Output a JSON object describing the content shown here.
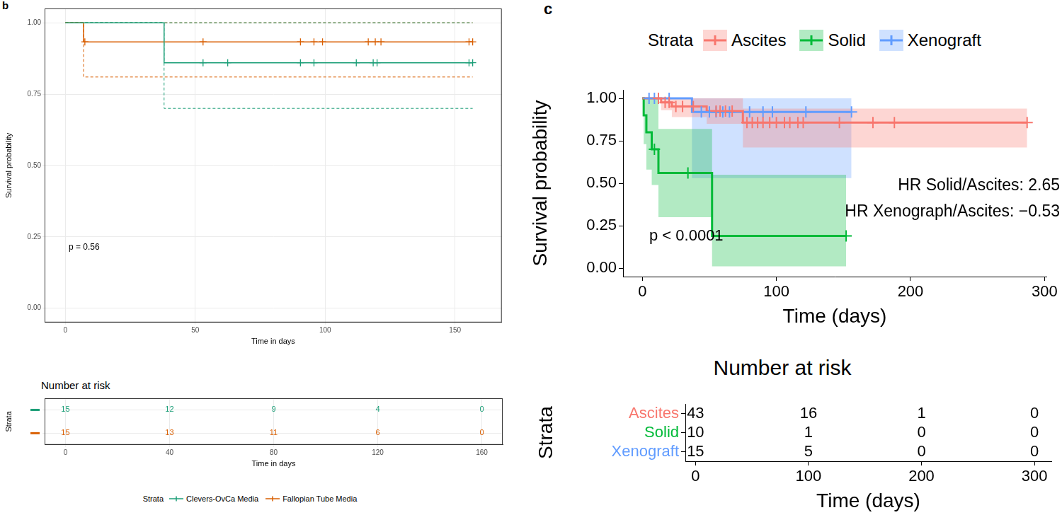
{
  "chart_data": [
    {
      "panel": "b",
      "type": "step",
      "x_label": "Time in days",
      "y_label": "Survival probability",
      "xlim": [
        -8,
        168
      ],
      "xticks": [
        0,
        50,
        100,
        150
      ],
      "ylim": [
        -0.05,
        1.05
      ],
      "yticks": [
        {
          "value": 0,
          "label": "0.00"
        },
        0.25,
        {
          "value": 0.5,
          "label": "0.50"
        },
        0.75,
        {
          "value": 1,
          "label": "1.00"
        }
      ],
      "grid": true,
      "legend": "bottom",
      "legend_title": "Strata",
      "ci": {
        "type": "line",
        "line_style": "dashed"
      },
      "annotations": [
        "p = 0.56"
      ],
      "series": [
        {
          "name": "Clevers-OvCa Media",
          "color": "#1B9E77",
          "marker": "cross",
          "x": [
            0,
            38,
            156.8
          ],
          "values": [
            1,
            0.86,
            0.86
          ],
          "lower": [
            1,
            0.7,
            0.7
          ],
          "upper": [
            1,
            1,
            1
          ],
          "censored": [
            53,
            62.5,
            90.5,
            95.7,
            112,
            118.5,
            120,
            155.4,
            156.8
          ]
        },
        {
          "name": "Fallopian Tube Media",
          "color": "#D95F02",
          "marker": "cross",
          "x": [
            0,
            7,
            156.8
          ],
          "values": [
            1,
            0.933,
            0.933
          ],
          "lower": [
            1,
            0.81,
            0.81
          ],
          "upper": [
            1,
            1,
            1
          ],
          "censored": [
            7.5,
            53,
            90.5,
            95.7,
            99,
            116.6,
            119.3,
            121.5,
            155.4,
            156.8
          ]
        }
      ],
      "risk_table": {
        "title": "Number at risk",
        "x_label": "Time in days",
        "y_label": "Strata",
        "xlim": [
          -8,
          168
        ],
        "xticks": [
          0,
          40,
          80,
          120,
          160
        ],
        "counts": [
          [
            15,
            12,
            9,
            4,
            0
          ],
          [
            15,
            13,
            11,
            6,
            0
          ]
        ],
        "grid": true,
        "tick_labels": "x"
      }
    },
    {
      "panel": "c",
      "type": "step",
      "x_label": "Time (days)",
      "y_label": "Survival probability",
      "xlim": [
        -14.4,
        301.4
      ],
      "xticks": [
        0,
        100,
        200,
        300
      ],
      "ylim": [
        -0.05,
        1.05
      ],
      "yticks": [
        {
          "value": 0,
          "label": "0.00"
        },
        0.25,
        {
          "value": 0.5,
          "label": "0.50"
        },
        0.75,
        {
          "value": 1,
          "label": "1.00"
        }
      ],
      "grid": false,
      "legend": "top",
      "legend_title": "Strata",
      "ci": {
        "type": "area"
      },
      "annotations": [
        "HR Solid/Ascites: 2.65",
        "HR Xenograph/Ascites: −0.53",
        "p < 0.0001"
      ],
      "series": [
        {
          "name": "Ascites",
          "color": "#F8766D",
          "marker": "cross",
          "x": [
            0,
            14,
            22,
            48,
            75,
            287
          ],
          "values": [
            1,
            0.976,
            0.952,
            0.925,
            0.857,
            0.857
          ],
          "lower": [
            1,
            0.93,
            0.89,
            0.85,
            0.71,
            0.71
          ],
          "upper": [
            1,
            1,
            1,
            1,
            0.94,
            0.94
          ],
          "censored": [
            12,
            17,
            20,
            25,
            30,
            38,
            55,
            58,
            62,
            67,
            78,
            82,
            86,
            90,
            95,
            100,
            106,
            110,
            116,
            120,
            147,
            172,
            188,
            287
          ]
        },
        {
          "name": "Solid",
          "color": "#00BA38",
          "marker": "cross",
          "x": [
            0,
            1,
            3,
            7,
            12,
            52,
            152
          ],
          "values": [
            1,
            0.9,
            0.8,
            0.7,
            0.56,
            0.19,
            0.19
          ],
          "lower": [
            1,
            0.73,
            0.58,
            0.49,
            0.3,
            0.01,
            0.01
          ],
          "upper": [
            1,
            1,
            1,
            1,
            0.82,
            0.55,
            0.55
          ],
          "censored": [
            9,
            34,
            152
          ]
        },
        {
          "name": "Xenograft",
          "color": "#619CFF",
          "marker": "cross",
          "x": [
            0,
            37,
            156
          ],
          "values": [
            1,
            0.92,
            0.92
          ],
          "lower": [
            1,
            0.53,
            0.53
          ],
          "upper": [
            1,
            1,
            1
          ],
          "censored": [
            5,
            9,
            20,
            44,
            50,
            55,
            60,
            65,
            80,
            90,
            97,
            122,
            156
          ]
        }
      ],
      "risk_table": {
        "title": "Number at risk",
        "x_label": "Time (days)",
        "y_label": "Strata",
        "xlim": [
          -9,
          315
        ],
        "xticks": [
          0,
          100,
          200,
          300
        ],
        "counts": [
          [
            43,
            16,
            1,
            0
          ],
          [
            10,
            1,
            0,
            0
          ],
          [
            15,
            5,
            0,
            0
          ]
        ],
        "grid": false
      }
    }
  ]
}
